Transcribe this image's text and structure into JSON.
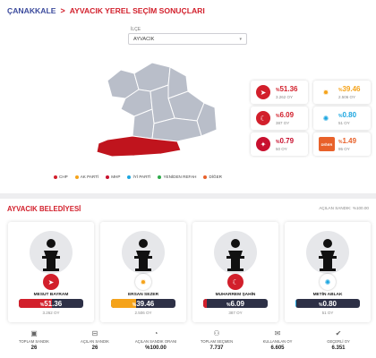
{
  "header": {
    "province": "ÇANAKKALE",
    "separator": ">",
    "heading": "AYVACIK YEREL SEÇİM SONUÇLARI"
  },
  "district_select": {
    "label": "İLÇE",
    "value": "AYVACIK"
  },
  "party_results": [
    {
      "party": "CHP",
      "pct_prefix": "%",
      "pct": "51.36",
      "votes": "3.262 OY",
      "color": "#d21f2b",
      "icon": "chp-six-arrows-icon"
    },
    {
      "party": "AK PARTİ",
      "pct_prefix": "%",
      "pct": "39.46",
      "votes": "2.506 OY",
      "color": "#f5a31a",
      "icon": "akp-lightbulb-icon"
    },
    {
      "party": "MHP",
      "pct_prefix": "%",
      "pct": "6.09",
      "votes": "387 OY",
      "color": "#d21f2b",
      "icon": "mhp-crescents-icon"
    },
    {
      "party": "İYİ PARTİ",
      "pct_prefix": "%",
      "pct": "0.80",
      "votes": "51 OY",
      "color": "#1ca6e0",
      "icon": "iyi-sun-icon"
    },
    {
      "party": "YENİDEN REFAH",
      "pct_prefix": "%",
      "pct": "0.79",
      "votes": "50 OY",
      "color": "#c8102e",
      "icon": "yrp-emblem-icon"
    },
    {
      "party": "DİĞER",
      "pct_prefix": "%",
      "pct": "1.49",
      "votes": "95 OY",
      "color": "#e8612a",
      "icon": "other-badge-icon",
      "badge": "DİĞER"
    }
  ],
  "legend": [
    {
      "label": "CHP",
      "color": "#d21f2b"
    },
    {
      "label": "AK PARTİ",
      "color": "#f5a31a"
    },
    {
      "label": "MHP",
      "color": "#c8102e"
    },
    {
      "label": "İYİ PARTİ",
      "color": "#1ca6e0"
    },
    {
      "label": "YENİDEN REFAH",
      "color": "#2eaa4a"
    },
    {
      "label": "DİĞER",
      "color": "#e8612a"
    }
  ],
  "belediye": {
    "title": "AYVACIK BELEDİYESİ",
    "acilan_sandik": "AÇILAN SANDIK: %100.00",
    "candidates": [
      {
        "name": "MESUT BAYRAM",
        "pct_prefix": "%",
        "pct": "51.36",
        "share": 0.5136,
        "votes": "3.262 OY",
        "color": "#d21f2b",
        "icon": "chp-six-arrows-icon"
      },
      {
        "name": "ERSAN SEZER",
        "pct_prefix": "%",
        "pct": "39.46",
        "share": 0.3946,
        "votes": "2.506 OY",
        "color": "#f5a31a",
        "icon": "akp-lightbulb-icon"
      },
      {
        "name": "MUHARREM ŞAHİN",
        "pct_prefix": "%",
        "pct": "6.09",
        "share": 0.0609,
        "votes": "387 OY",
        "color": "#d21f2b",
        "icon": "mhp-crescents-icon"
      },
      {
        "name": "METİN ABLAK",
        "pct_prefix": "%",
        "pct": "0.80",
        "share": 0.008,
        "votes": "51 OY",
        "color": "#1ca6e0",
        "icon": "iyi-sun-icon"
      }
    ]
  },
  "stats": [
    {
      "label": "TOPLAM SANDIK",
      "value": "26",
      "icon": "ballot-box-icon"
    },
    {
      "label": "AÇILAN SANDIK",
      "value": "26",
      "icon": "open-ballot-icon"
    },
    {
      "label": "AÇILAN SANDIK ORANI",
      "value": "%100.00",
      "icon": "ratio-icon"
    },
    {
      "label": "TOPLAM SEÇMEN",
      "value": "7.737",
      "icon": "voters-icon"
    },
    {
      "label": "KULLANILAN OY",
      "value": "6.605",
      "icon": "used-votes-icon"
    },
    {
      "label": "GEÇERLİ OY",
      "value": "6.351",
      "icon": "valid-votes-icon"
    }
  ]
}
